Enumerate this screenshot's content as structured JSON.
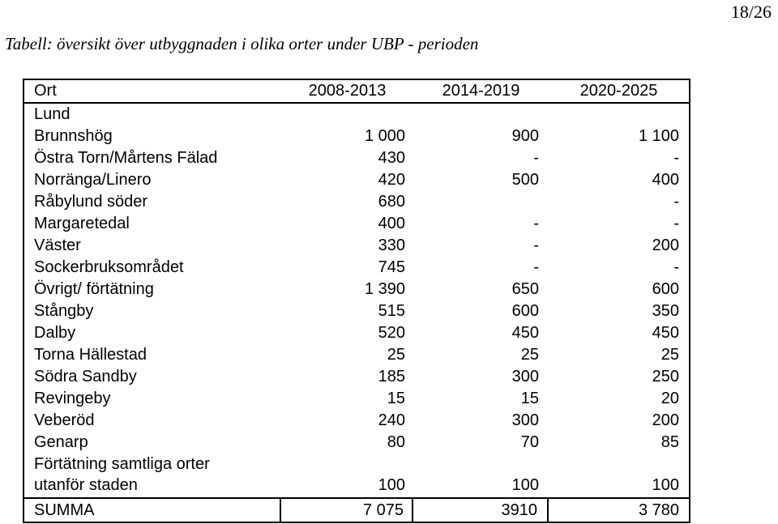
{
  "page": {
    "number": "18/26"
  },
  "caption": "Tabell: översikt över utbyggnaden i olika orter under UBP - perioden",
  "table": {
    "headers": [
      "Ort",
      "2008-2013",
      "2014-2019",
      "2020-2025"
    ],
    "rows": [
      [
        "Lund",
        "",
        "",
        ""
      ],
      [
        "Brunnshög",
        "1 000",
        "900",
        "1 100"
      ],
      [
        "Östra Torn/Mårtens Fälad",
        "430",
        "-",
        "-"
      ],
      [
        "Norränga/Linero",
        "420",
        "500",
        "400"
      ],
      [
        "Råbylund söder",
        "680",
        "",
        "-"
      ],
      [
        "Margaretedal",
        "400",
        "-",
        "-"
      ],
      [
        "Väster",
        "330",
        "-",
        "200"
      ],
      [
        "Sockerbruksområdet",
        "745",
        "-",
        "-"
      ],
      [
        "Övrigt/ förtätning",
        "1 390",
        "650",
        "600"
      ],
      [
        "Stångby",
        "515",
        "600",
        "350"
      ],
      [
        "Dalby",
        "520",
        "450",
        "450"
      ],
      [
        "Torna Hällestad",
        "25",
        "25",
        "25"
      ],
      [
        "Södra Sandby",
        "185",
        "300",
        "250"
      ],
      [
        "Revingeby",
        "15",
        "15",
        "20"
      ],
      [
        "Veberöd",
        "240",
        "300",
        "200"
      ],
      [
        "Genarp",
        "80",
        "70",
        "85"
      ]
    ],
    "multiline_row": {
      "line1": "Förtätning samtliga orter",
      "line2": "utanför staden",
      "values": [
        "100",
        "100",
        "100"
      ]
    },
    "summary_row": [
      "SUMMA",
      "7 075",
      "3910",
      "3 780"
    ]
  }
}
